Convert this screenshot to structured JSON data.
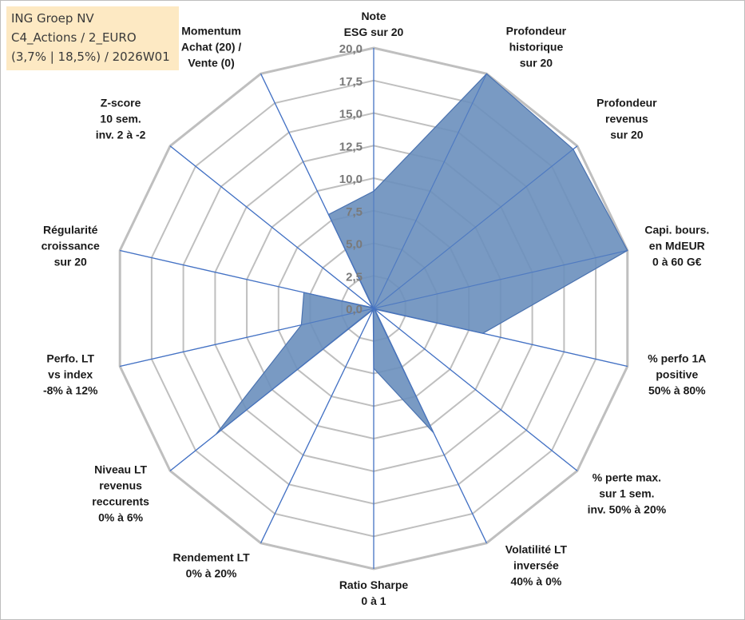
{
  "title_box": {
    "line1": "ING Groep NV",
    "line2": "C4_Actions / 2_EURO",
    "line3": "(3,7% | 18,5%) / 2026W01"
  },
  "colors": {
    "fill": "#6a8fbd",
    "stroke": "#4a72b0",
    "grid": "#bfbfbf",
    "spoke": "#4472c4",
    "title_bg": "#fde9c3"
  },
  "chart_data": {
    "type": "radar",
    "rmin": 0,
    "rmax": 20,
    "ticks": [
      "0,0",
      "2,5",
      "5,0",
      "7,5",
      "10,0",
      "12,5",
      "15,0",
      "17,5",
      "20,0"
    ],
    "categories": [
      [
        "Note",
        "ESG sur 20"
      ],
      [
        "Profondeur",
        "historique",
        "sur 20"
      ],
      [
        "Profondeur",
        "revenus",
        "sur 20"
      ],
      [
        "Capi. bours.",
        "en MdEUR",
        "0 à 60 G€"
      ],
      [
        "% perfo 1A",
        "positive",
        "50% à 80%"
      ],
      [
        "% perte max.",
        "sur 1 sem.",
        "inv. 50% à 20%"
      ],
      [
        "Volatilité LT",
        "inversée",
        "40% à 0%"
      ],
      [
        "Ratio Sharpe",
        "0 à 1"
      ],
      [
        "Rendement LT",
        "0% à 20%"
      ],
      [
        "Niveau LT",
        "revenus",
        "reccurents",
        "0% à 6%"
      ],
      [
        "Perfo. LT",
        "vs index",
        "-8% à 12%"
      ],
      [
        "Régularité",
        "croissance",
        "sur 20"
      ],
      [
        "Z-score",
        "10 sem.",
        "inv. 2 à -2"
      ],
      [
        "Momentum",
        "Achat (20) /",
        "Vente (0)"
      ]
    ],
    "values": [
      9.0,
      20.0,
      19.6,
      20.0,
      8.6,
      0.1,
      10.6,
      4.6,
      0.1,
      15.5,
      5.7,
      5.5,
      0.1,
      8.0
    ],
    "grid": true
  }
}
